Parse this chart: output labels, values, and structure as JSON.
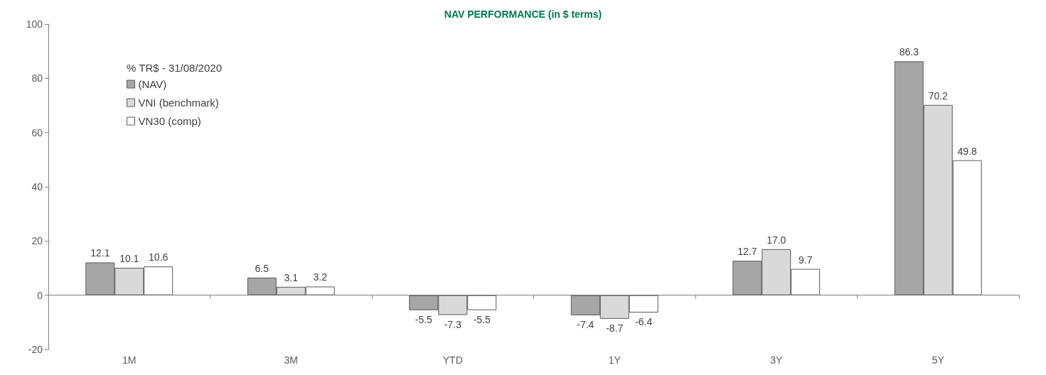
{
  "chart_data": {
    "type": "bar",
    "title": "NAV PERFORMANCE (in $ terms)",
    "legend_title": "% TR$ - 31/08/2020",
    "categories": [
      "1M",
      "3M",
      "YTD",
      "1Y",
      "3Y",
      "5Y"
    ],
    "series": [
      {
        "name": "(NAV)",
        "color": "#a6a6a6",
        "values": [
          12.1,
          6.5,
          -5.5,
          -7.4,
          12.7,
          86.3
        ],
        "value_labels": [
          "12.1",
          "6.5",
          "-5.5",
          "-7.4",
          "12.7",
          "86.3"
        ]
      },
      {
        "name": "VNI (benchmark)",
        "color": "#d9d9d9",
        "values": [
          10.1,
          3.1,
          -7.3,
          -8.7,
          17.0,
          70.2
        ],
        "value_labels": [
          "10.1",
          "3.1",
          "-7.3",
          "-8.7",
          "17.0",
          "70.2"
        ]
      },
      {
        "name": "VN30 (comp)",
        "color": "#ffffff",
        "values": [
          10.6,
          3.2,
          -5.5,
          -6.4,
          9.7,
          49.8
        ],
        "value_labels": [
          "10.6",
          "3.2",
          "-5.5",
          "-6.4",
          "9.7",
          "49.8"
        ]
      }
    ],
    "ylim": [
      -20,
      100
    ],
    "yticks": [
      -20,
      0,
      20,
      40,
      60,
      80,
      100
    ],
    "legend": "top left"
  }
}
